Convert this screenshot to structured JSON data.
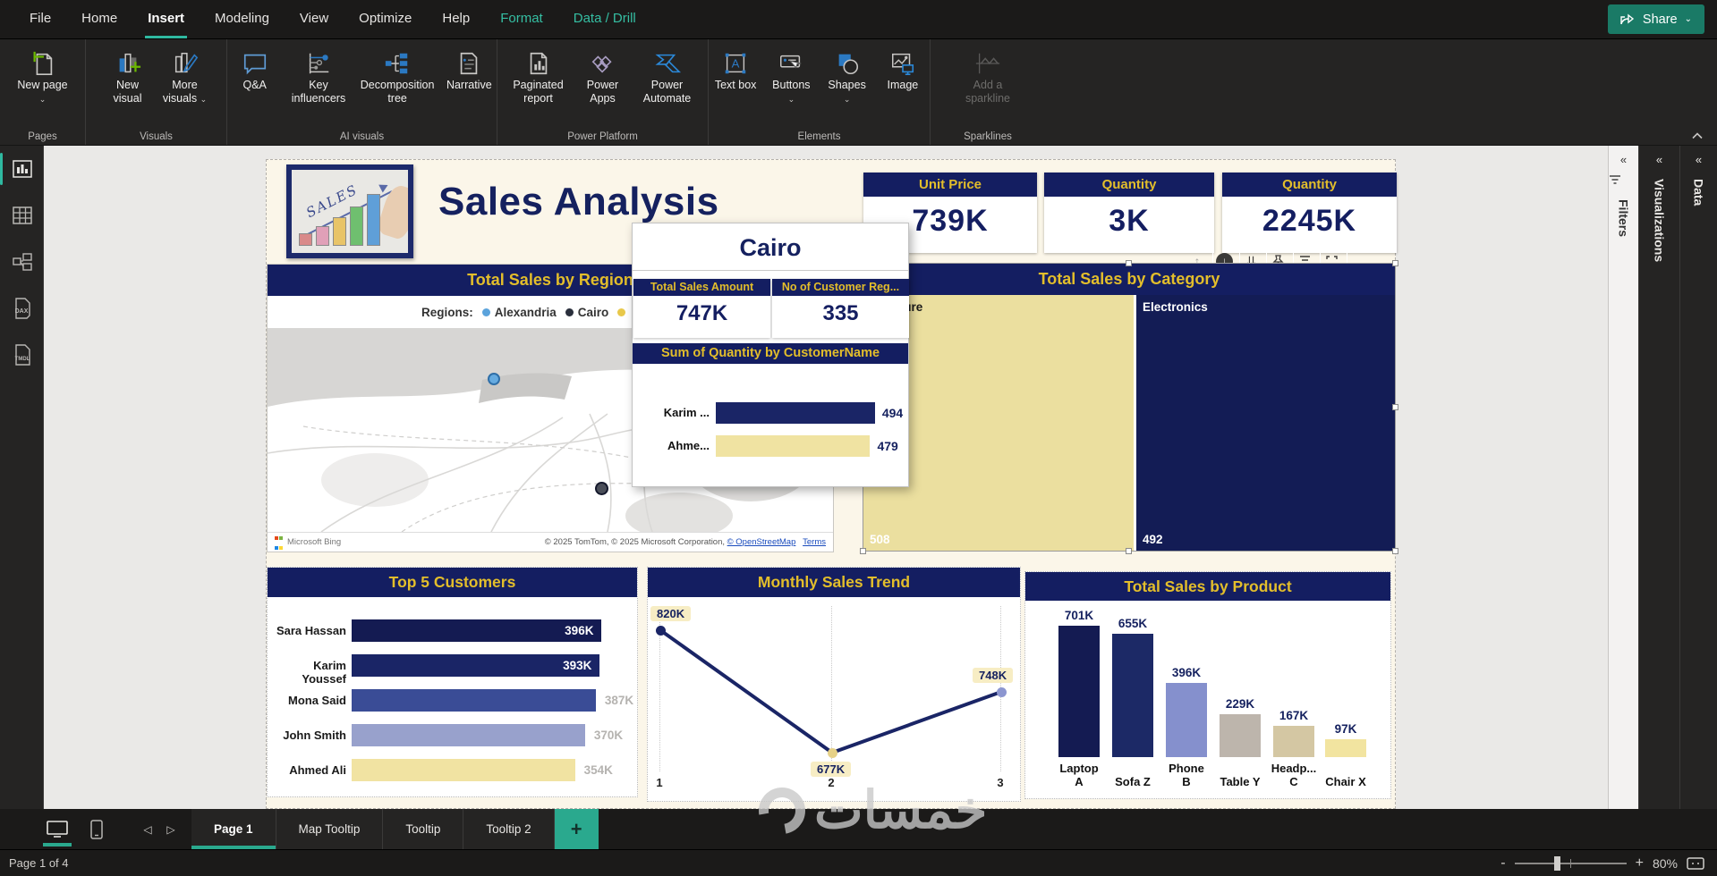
{
  "menu": {
    "items": [
      {
        "label": "File"
      },
      {
        "label": "Home"
      },
      {
        "label": "Insert"
      },
      {
        "label": "Modeling"
      },
      {
        "label": "View"
      },
      {
        "label": "Optimize"
      },
      {
        "label": "Help"
      },
      {
        "label": "Format"
      },
      {
        "label": "Data / Drill"
      }
    ],
    "share_label": "Share"
  },
  "ribbon": {
    "groups": [
      {
        "label": "Pages",
        "items": [
          {
            "label": "New page"
          }
        ]
      },
      {
        "label": "Visuals",
        "items": [
          {
            "label": "New visual"
          },
          {
            "label": "More visuals"
          }
        ]
      },
      {
        "label": "AI visuals",
        "items": [
          {
            "label": "Q&A"
          },
          {
            "label": "Key influencers"
          },
          {
            "label": "Decomposition tree"
          },
          {
            "label": "Narrative"
          }
        ]
      },
      {
        "label": "Power Platform",
        "items": [
          {
            "label": "Paginated report"
          },
          {
            "label": "Power Apps"
          },
          {
            "label": "Power Automate"
          }
        ]
      },
      {
        "label": "Elements",
        "items": [
          {
            "label": "Text box"
          },
          {
            "label": "Buttons"
          },
          {
            "label": "Shapes"
          },
          {
            "label": "Image"
          }
        ]
      },
      {
        "label": "Sparklines",
        "items": [
          {
            "label": "Add a sparkline"
          }
        ]
      }
    ]
  },
  "left_nav": {
    "dax_label": "DAX",
    "tmdl_label": "TMDL"
  },
  "canvas": {
    "title": "Sales Analysis",
    "logo_text": "SALES",
    "kpis": [
      {
        "title": "Unit Price",
        "value": "739K"
      },
      {
        "title": "Quantity",
        "value": "3K"
      },
      {
        "title": "Quantity",
        "value": "2245K"
      }
    ],
    "map": {
      "title": "Total Sales by Region",
      "legend_label": "Regions:",
      "legend": [
        {
          "name": "Alexandria",
          "color": "#5BA3DC"
        },
        {
          "name": "Cairo",
          "color": "#2A2F3C"
        }
      ],
      "attribution_brand": "Microsoft Bing",
      "attribution_text": "© 2025 TomTom, © 2025 Microsoft Corporation,",
      "attribution_osm": "© OpenStreetMap",
      "attribution_terms": "Terms"
    },
    "tooltip": {
      "title": "Cairo",
      "cards": [
        {
          "title": "Total Sales Amount",
          "value": "747K"
        },
        {
          "title": "No of Customer Reg...",
          "value": "335"
        }
      ],
      "banner": "Sum of Quantity by CustomerName",
      "chart_data": {
        "type": "bar",
        "categories": [
          "Karim ...",
          "Ahme..."
        ],
        "values": [
          494,
          479
        ],
        "display": [
          "494",
          "479"
        ],
        "colors": [
          "#1A2566",
          "#F0E3A2"
        ]
      }
    },
    "treemap": {
      "title": "Total Sales by Category",
      "chart_data": {
        "type": "treemap",
        "categories": [
          "Furniture",
          "Electronics"
        ],
        "values": [
          508,
          492
        ],
        "display": [
          "508",
          "492"
        ],
        "colors": [
          "#EBDF9F",
          "#131C55"
        ],
        "label_colors": [
          "#1a1a1a",
          "#ffffff"
        ]
      }
    },
    "top5": {
      "title": "Top 5 Customers",
      "chart_data": {
        "type": "bar",
        "categories": [
          "Sara Hassan",
          "Karim Youssef",
          "Mona Said",
          "John Smith",
          "Ahmed Ali"
        ],
        "values": [
          396,
          393,
          387,
          370,
          354
        ],
        "display": [
          "396K",
          "393K",
          "387K",
          "370K",
          "354K"
        ],
        "colors": [
          "#141B52",
          "#1A2566",
          "#3A4C96",
          "#98A1CC",
          "#F1E3A2"
        ]
      }
    },
    "trend": {
      "title": "Monthly Sales Trend",
      "chart_data": {
        "type": "line",
        "x": [
          "1",
          "2",
          "3"
        ],
        "values": [
          820,
          677,
          748
        ],
        "display": [
          "820K",
          "677K",
          "748K"
        ],
        "line_color": "#1A2566",
        "point_colors": [
          "#1A2566",
          "#E6D188",
          "#8C96D0"
        ]
      }
    },
    "product": {
      "title": "Total Sales by Product",
      "chart_data": {
        "type": "bar",
        "categories": [
          "Laptop A",
          "Sofa Z",
          "Phone B",
          "Table Y",
          "Headp... C",
          "Chair X"
        ],
        "values": [
          701,
          655,
          396,
          229,
          167,
          97
        ],
        "display": [
          "701K",
          "655K",
          "396K",
          "229K",
          "167K",
          "97K"
        ],
        "colors": [
          "#141B52",
          "#1C2966",
          "#8590CD",
          "#BDB5AC",
          "#D4C7A3",
          "#F2E4A0"
        ]
      }
    }
  },
  "right_panels": [
    {
      "label": "Filters"
    },
    {
      "label": "Visualizations"
    },
    {
      "label": "Data"
    }
  ],
  "pages_bar": {
    "tabs": [
      {
        "label": "Page 1"
      },
      {
        "label": "Map Tooltip"
      },
      {
        "label": "Tooltip"
      },
      {
        "label": "Tooltip 2"
      }
    ]
  },
  "status_bar": {
    "page_indicator": "Page 1 of 4",
    "zoom_level": "80%"
  },
  "watermark": "خمسات",
  "colors": {
    "accent": "#2AA98E",
    "navy": "#141E61",
    "gold": "#E3BE2B",
    "share_button": "#1A7A66"
  }
}
